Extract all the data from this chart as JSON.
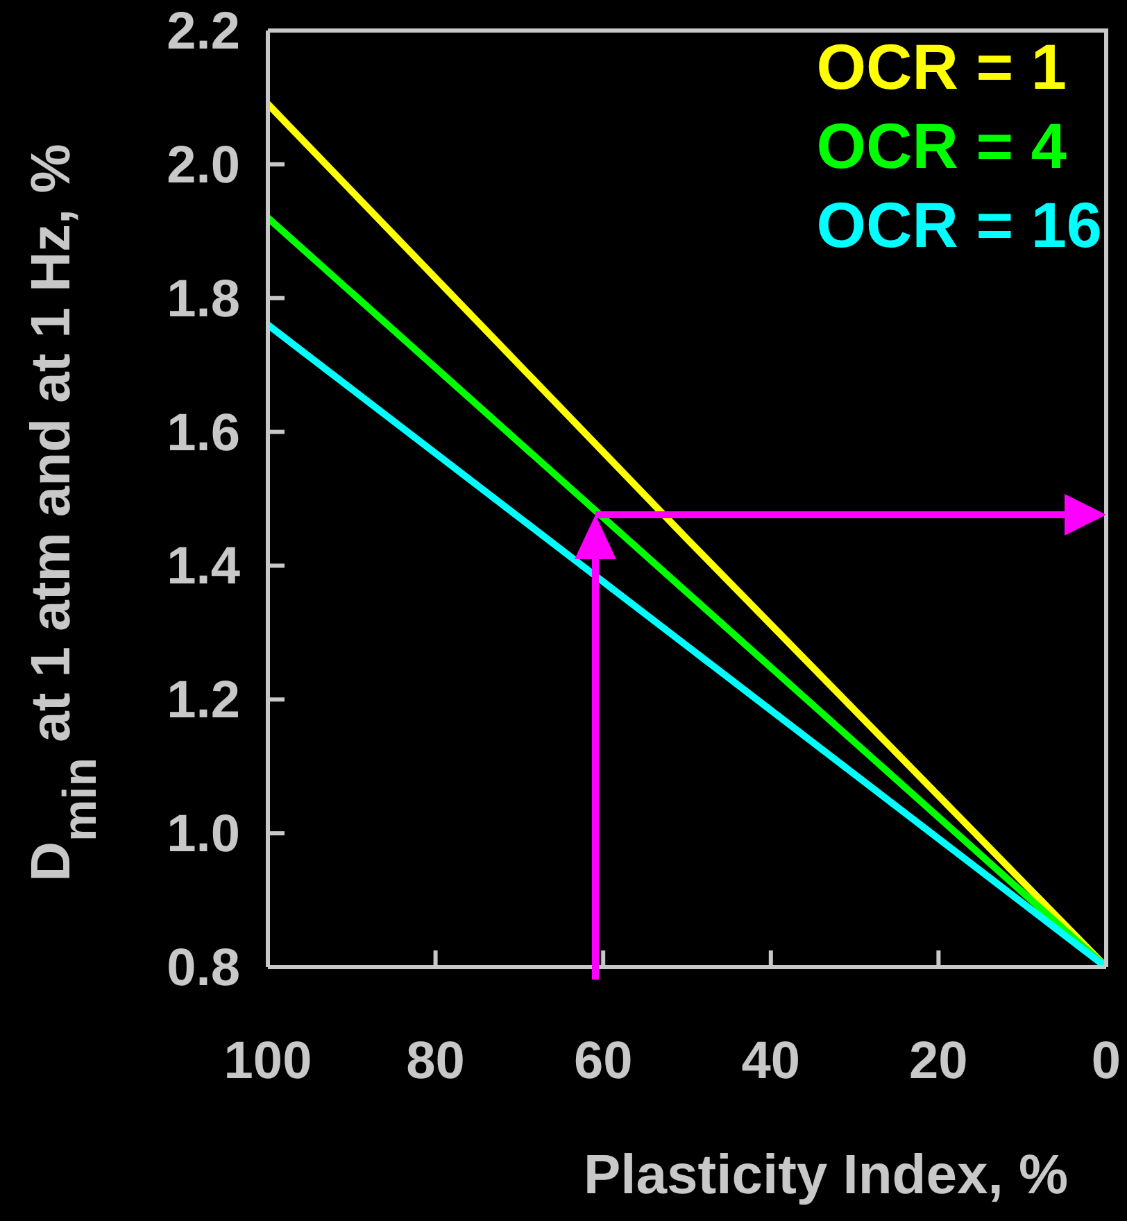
{
  "chart_data": {
    "type": "line",
    "xlabel": "Plasticity Index, %",
    "ylabel": "D$_{min}$ at 1 atm and at 1 Hz, %",
    "x": [
      100,
      50,
      0
    ],
    "series": [
      {
        "name": "OCR = 1",
        "color": "#ffff00",
        "values": [
          2.09,
          1.44,
          0.8
        ]
      },
      {
        "name": "OCR = 4",
        "color": "#00ff00",
        "values": [
          1.92,
          1.36,
          0.8
        ]
      },
      {
        "name": "OCR = 16",
        "color": "#00ffff",
        "values": [
          1.76,
          1.28,
          0.8
        ]
      }
    ],
    "xlim": [
      100,
      0
    ],
    "xticks": [
      100,
      80,
      60,
      40,
      20,
      0
    ],
    "ylim": [
      0.8,
      2.2
    ],
    "yticks": [
      0.8,
      {
        "value": 1,
        "label": "1.0"
      },
      1.2,
      1.4,
      1.6,
      1.8,
      {
        "value": 2,
        "label": "2.0"
      },
      2.2
    ],
    "grid": false,
    "legend": "top right",
    "marker": "none",
    "line_style": "solid"
  }
}
